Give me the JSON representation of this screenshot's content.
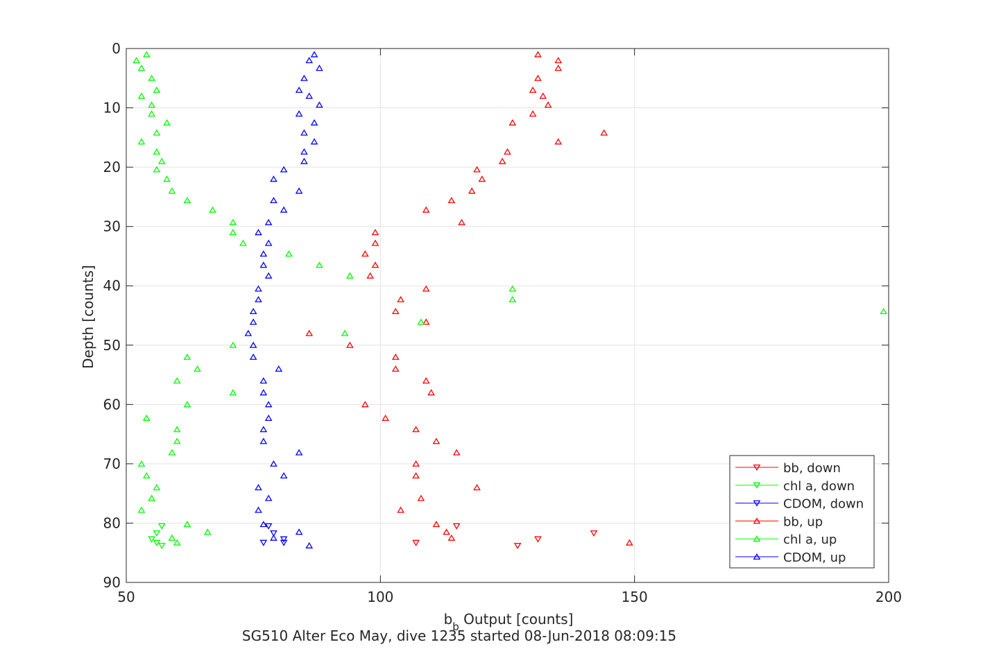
{
  "chart_data": {
    "type": "scatter",
    "xlabel": {
      "main": "b",
      "sub": "b",
      "rest": " Output [counts]"
    },
    "ylabel": "Depth [counts]",
    "subtitle": "SG510 Alter Eco May, dive 1235 started 08-Jun-2018 08:09:15",
    "xlim": [
      50,
      200
    ],
    "ylim": [
      0,
      90
    ],
    "y_reversed": true,
    "grid": true,
    "legend_position": "bottom-right",
    "x_ticks": [
      50,
      100,
      150,
      200
    ],
    "y_ticks": [
      0,
      10,
      20,
      30,
      40,
      50,
      60,
      70,
      80,
      90
    ],
    "series": [
      {
        "name": "bb, down",
        "color": "#ff0000",
        "marker": "triangle-down",
        "points": [
          [
            115,
            80.5
          ],
          [
            131,
            82.7
          ],
          [
            142,
            81.7
          ],
          [
            107,
            83.3
          ],
          [
            127,
            83.8
          ]
        ]
      },
      {
        "name": "chl a, down",
        "color": "#00ff00",
        "marker": "triangle-down",
        "points": [
          [
            57,
            80.5
          ],
          [
            56,
            81.7
          ],
          [
            55,
            82.7
          ],
          [
            56,
            83.3
          ],
          [
            57,
            83.8
          ]
        ]
      },
      {
        "name": "CDOM, down",
        "color": "#0000ff",
        "marker": "triangle-down",
        "points": [
          [
            78,
            80.5
          ],
          [
            79,
            81.7
          ],
          [
            81,
            82.7
          ],
          [
            81,
            83.3
          ],
          [
            77,
            83.3
          ]
        ]
      },
      {
        "name": "bb, up",
        "color": "#ff0000",
        "marker": "triangle-up",
        "points": [
          [
            131,
            1
          ],
          [
            135,
            2
          ],
          [
            135,
            3.3
          ],
          [
            131,
            5
          ],
          [
            130,
            7
          ],
          [
            132,
            8
          ],
          [
            133,
            9.5
          ],
          [
            130,
            11
          ],
          [
            126,
            12.5
          ],
          [
            144,
            14.2
          ],
          [
            135,
            15.7
          ],
          [
            125,
            17.4
          ],
          [
            124,
            19
          ],
          [
            119,
            20.4
          ],
          [
            120,
            22
          ],
          [
            118,
            24
          ],
          [
            114,
            25.6
          ],
          [
            109,
            27.2
          ],
          [
            116,
            29.3
          ],
          [
            99,
            31
          ],
          [
            99,
            32.8
          ],
          [
            97,
            34.6
          ],
          [
            99,
            36.5
          ],
          [
            98,
            38.3
          ],
          [
            109,
            40.5
          ],
          [
            104,
            42.3
          ],
          [
            103,
            44.3
          ],
          [
            109,
            46.1
          ],
          [
            86,
            48
          ],
          [
            94,
            50
          ],
          [
            103,
            52
          ],
          [
            103,
            54
          ],
          [
            109,
            56
          ],
          [
            110,
            58
          ],
          [
            97,
            60
          ],
          [
            101,
            62.3
          ],
          [
            107,
            64.2
          ],
          [
            111,
            66.2
          ],
          [
            115,
            68.1
          ],
          [
            107,
            70
          ],
          [
            107,
            72
          ],
          [
            119,
            74
          ],
          [
            108,
            75.8
          ],
          [
            104,
            77.8
          ],
          [
            111,
            80.2
          ],
          [
            113,
            81.5
          ],
          [
            114,
            82.5
          ],
          [
            149,
            83.3
          ]
        ]
      },
      {
        "name": "chl a, up",
        "color": "#00ff00",
        "marker": "triangle-up",
        "points": [
          [
            54,
            1
          ],
          [
            52,
            2
          ],
          [
            53,
            3.3
          ],
          [
            55,
            5
          ],
          [
            56,
            7
          ],
          [
            53,
            8
          ],
          [
            55,
            9.5
          ],
          [
            55,
            11
          ],
          [
            58,
            12.5
          ],
          [
            56,
            14.2
          ],
          [
            53,
            15.7
          ],
          [
            56,
            17.4
          ],
          [
            57,
            19
          ],
          [
            56,
            20.4
          ],
          [
            58,
            22
          ],
          [
            59,
            24
          ],
          [
            62,
            25.6
          ],
          [
            67,
            27.2
          ],
          [
            71,
            29.3
          ],
          [
            71,
            31
          ],
          [
            73,
            32.8
          ],
          [
            82,
            34.6
          ],
          [
            88,
            36.5
          ],
          [
            94,
            38.3
          ],
          [
            126,
            40.5
          ],
          [
            126,
            42.3
          ],
          [
            199,
            44.3
          ],
          [
            108,
            46.1
          ],
          [
            93,
            48
          ],
          [
            71,
            50
          ],
          [
            62,
            52
          ],
          [
            64,
            54
          ],
          [
            60,
            56
          ],
          [
            71,
            58
          ],
          [
            62,
            60
          ],
          [
            54,
            62.3
          ],
          [
            60,
            64.2
          ],
          [
            60,
            66.2
          ],
          [
            59,
            68.1
          ],
          [
            53,
            70
          ],
          [
            54,
            72
          ],
          [
            56,
            74
          ],
          [
            55,
            75.8
          ],
          [
            53,
            77.8
          ],
          [
            62,
            80.2
          ],
          [
            66,
            81.5
          ],
          [
            59,
            82.5
          ],
          [
            60,
            83.3
          ]
        ]
      },
      {
        "name": "CDOM, up",
        "color": "#0000ff",
        "marker": "triangle-up",
        "points": [
          [
            87,
            1
          ],
          [
            86,
            2
          ],
          [
            88,
            3.3
          ],
          [
            85,
            5
          ],
          [
            84,
            7
          ],
          [
            86,
            8
          ],
          [
            88,
            9.5
          ],
          [
            84,
            11
          ],
          [
            87,
            12.5
          ],
          [
            85,
            14.2
          ],
          [
            87,
            15.7
          ],
          [
            85,
            17.4
          ],
          [
            85,
            19
          ],
          [
            81,
            20.4
          ],
          [
            79,
            22
          ],
          [
            84,
            24
          ],
          [
            79,
            25.6
          ],
          [
            81,
            27.2
          ],
          [
            78,
            29.3
          ],
          [
            76,
            31
          ],
          [
            78,
            32.8
          ],
          [
            77,
            34.6
          ],
          [
            77,
            36.5
          ],
          [
            78,
            38.3
          ],
          [
            76,
            40.5
          ],
          [
            76,
            42.3
          ],
          [
            75,
            44.3
          ],
          [
            75,
            46.1
          ],
          [
            74,
            48
          ],
          [
            75,
            50
          ],
          [
            75,
            52
          ],
          [
            80,
            54
          ],
          [
            77,
            56
          ],
          [
            77,
            58
          ],
          [
            78,
            60
          ],
          [
            78,
            62.3
          ],
          [
            77,
            64.2
          ],
          [
            77,
            66.2
          ],
          [
            84,
            68.1
          ],
          [
            79,
            70
          ],
          [
            81,
            72
          ],
          [
            76,
            74
          ],
          [
            78,
            75.8
          ],
          [
            76,
            77.8
          ],
          [
            77,
            80.2
          ],
          [
            84,
            81.5
          ],
          [
            79,
            82.5
          ],
          [
            86,
            83.8
          ]
        ]
      }
    ]
  }
}
